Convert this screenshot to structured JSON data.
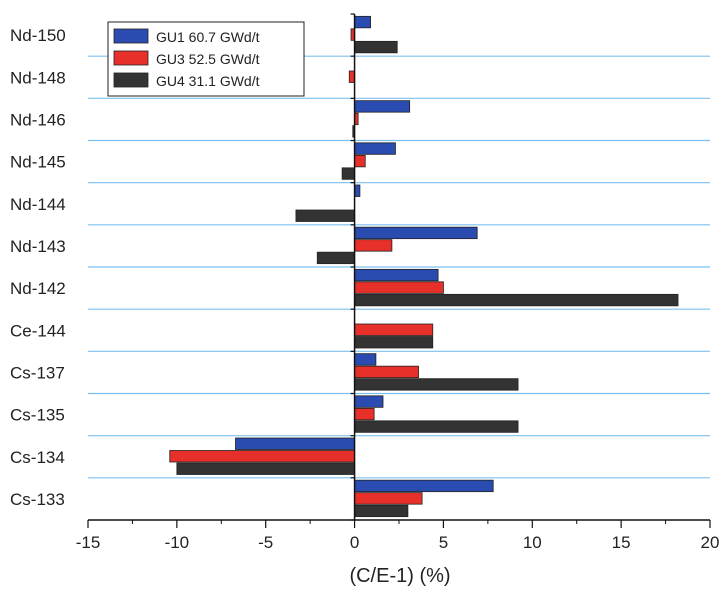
{
  "chart_data": {
    "type": "bar",
    "orientation": "horizontal",
    "categories": [
      "Nd-150",
      "Nd-148",
      "Nd-146",
      "Nd-145",
      "Nd-144",
      "Nd-143",
      "Nd-142",
      "Ce-144",
      "Cs-137",
      "Cs-135",
      "Cs-134",
      "Cs-133"
    ],
    "series": [
      {
        "name": "GU1 60.7 GWd/t",
        "color": "#2a4bb0",
        "values": [
          0.9,
          null,
          3.1,
          2.3,
          0.3,
          6.9,
          4.7,
          null,
          1.2,
          1.6,
          -6.7,
          7.8
        ]
      },
      {
        "name": "GU3 52.5 GWd/t",
        "color": "#e8302a",
        "values": [
          -0.2,
          -0.3,
          0.2,
          0.6,
          null,
          2.1,
          5.0,
          4.4,
          3.6,
          1.1,
          -10.4,
          3.8
        ]
      },
      {
        "name": "GU4 31.1 GWd/t",
        "color": "#333333",
        "values": [
          2.4,
          null,
          -0.1,
          -0.7,
          -3.3,
          -2.1,
          18.2,
          4.4,
          9.2,
          9.2,
          -10.0,
          3.0
        ]
      }
    ],
    "xlabel": "(C/E-1) (%)",
    "xlim": [
      -15,
      20
    ],
    "xticks": [
      -15,
      -10,
      -5,
      0,
      5,
      10,
      15,
      20
    ],
    "grid": "horizontal separators",
    "legend": "top-left"
  }
}
